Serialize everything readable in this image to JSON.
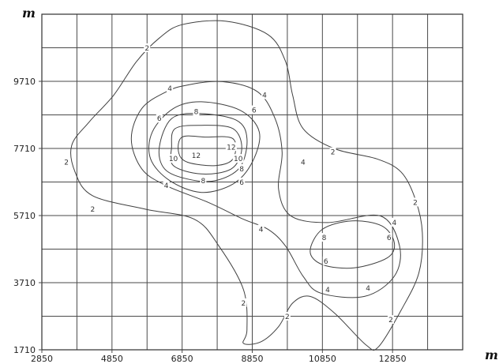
{
  "chart_data": {
    "type": "contour",
    "title": "",
    "xlabel": "m",
    "ylabel": "m",
    "xlim": [
      2850,
      14850
    ],
    "ylim": [
      1710,
      11710
    ],
    "x_ticks": [
      {
        "value": 2850,
        "label": "2850"
      },
      {
        "value": 4850,
        "label": "4850"
      },
      {
        "value": 6850,
        "label": "6850"
      },
      {
        "value": 8850,
        "label": "8850"
      },
      {
        "value": 10850,
        "label": "10850"
      },
      {
        "value": 12850,
        "label": "12850"
      }
    ],
    "y_ticks": [
      {
        "value": 1710,
        "label": "1710"
      },
      {
        "value": 3710,
        "label": "3710"
      },
      {
        "value": 5710,
        "label": "5710"
      },
      {
        "value": 7710,
        "label": "7710"
      },
      {
        "value": 9710,
        "label": "9710"
      }
    ],
    "grid_x": [
      2850,
      3850,
      4850,
      5850,
      6850,
      7850,
      8850,
      9850,
      10850,
      11850,
      12850,
      13850,
      14850
    ],
    "grid_y": [
      1710,
      2710,
      3710,
      4710,
      5710,
      6710,
      7710,
      8710,
      9710,
      10710,
      11710
    ],
    "grid": true,
    "contours": [
      {
        "level": "2",
        "points": [
          [
            6850,
            11400
          ],
          [
            8100,
            11500
          ],
          [
            9300,
            11100
          ],
          [
            9800,
            10300
          ],
          [
            10000,
            9300
          ],
          [
            10300,
            8300
          ],
          [
            11200,
            7700
          ],
          [
            12400,
            7400
          ],
          [
            13100,
            7000
          ],
          [
            13500,
            6200
          ],
          [
            13700,
            5200
          ],
          [
            13600,
            4000
          ],
          [
            13100,
            2900
          ],
          [
            12450,
            1800
          ],
          [
            12100,
            1850
          ],
          [
            11200,
            2800
          ],
          [
            10500,
            3300
          ],
          [
            10000,
            3100
          ],
          [
            9600,
            2400
          ],
          [
            9100,
            1950
          ],
          [
            8600,
            1900
          ],
          [
            8700,
            2300
          ],
          [
            8600,
            3500
          ],
          [
            7900,
            4800
          ],
          [
            7200,
            5600
          ],
          [
            5800,
            5900
          ],
          [
            4300,
            6300
          ],
          [
            3800,
            7000
          ],
          [
            3700,
            7800
          ],
          [
            4200,
            8500
          ],
          [
            4900,
            9300
          ],
          [
            5550,
            10300
          ],
          [
            6200,
            11000
          ],
          [
            6850,
            11400
          ]
        ]
      },
      {
        "level": "4",
        "points": [
          [
            6400,
            9400
          ],
          [
            7000,
            9600
          ],
          [
            8000,
            9700
          ],
          [
            9000,
            9400
          ],
          [
            9500,
            8600
          ],
          [
            9700,
            7600
          ],
          [
            9600,
            6500
          ],
          [
            9950,
            5700
          ],
          [
            11000,
            5500
          ],
          [
            12500,
            5700
          ],
          [
            13050,
            4800
          ],
          [
            12900,
            3900
          ],
          [
            12050,
            3300
          ],
          [
            10800,
            3400
          ],
          [
            10300,
            3900
          ],
          [
            9800,
            4800
          ],
          [
            9300,
            5300
          ],
          [
            8600,
            5600
          ],
          [
            7600,
            6100
          ],
          [
            6400,
            6600
          ],
          [
            5700,
            7100
          ],
          [
            5400,
            8000
          ],
          [
            5700,
            8900
          ],
          [
            6400,
            9400
          ]
        ]
      },
      {
        "level": "6",
        "points": [
          [
            6600,
            8900
          ],
          [
            7400,
            9100
          ],
          [
            8500,
            8850
          ],
          [
            9050,
            8200
          ],
          [
            8850,
            7300
          ],
          [
            8300,
            6650
          ],
          [
            7400,
            6400
          ],
          [
            6500,
            6750
          ],
          [
            5950,
            7400
          ],
          [
            6000,
            8200
          ],
          [
            6600,
            8900
          ]
        ]
      },
      {
        "level": "8",
        "points": [
          [
            6550,
            8600
          ],
          [
            7350,
            8750
          ],
          [
            8400,
            8550
          ],
          [
            8700,
            8000
          ],
          [
            8500,
            7150
          ],
          [
            7800,
            6750
          ],
          [
            7000,
            6800
          ],
          [
            6350,
            7100
          ],
          [
            6200,
            7750
          ],
          [
            6550,
            8600
          ]
        ]
      },
      {
        "level": "10",
        "points": [
          [
            6650,
            8300
          ],
          [
            7400,
            8400
          ],
          [
            8300,
            8300
          ],
          [
            8550,
            7700
          ],
          [
            8250,
            7100
          ],
          [
            7400,
            6950
          ],
          [
            6600,
            7200
          ],
          [
            6550,
            7750
          ],
          [
            6650,
            8300
          ]
        ]
      },
      {
        "level": "12",
        "points": [
          [
            6850,
            8050
          ],
          [
            7500,
            8050
          ],
          [
            8300,
            8000
          ],
          [
            8300,
            7400
          ],
          [
            7800,
            7200
          ],
          [
            7000,
            7300
          ],
          [
            6750,
            7600
          ],
          [
            6850,
            8050
          ]
        ]
      },
      {
        "level": "6",
        "points": [
          [
            10850,
            5300
          ],
          [
            11700,
            5550
          ],
          [
            12550,
            5400
          ],
          [
            12900,
            4900
          ],
          [
            12700,
            4450
          ],
          [
            11750,
            4150
          ],
          [
            10850,
            4250
          ],
          [
            10500,
            4650
          ],
          [
            10850,
            5300
          ]
        ]
      }
    ],
    "contour_labels": [
      {
        "text": "2",
        "x": 5850,
        "y": 10700
      },
      {
        "text": "2",
        "x": 3550,
        "y": 7300
      },
      {
        "text": "2",
        "x": 4300,
        "y": 5900
      },
      {
        "text": "2",
        "x": 9850,
        "y": 2700
      },
      {
        "text": "2",
        "x": 12800,
        "y": 2600
      },
      {
        "text": "2",
        "x": 13500,
        "y": 6100
      },
      {
        "text": "2",
        "x": 11150,
        "y": 7600
      },
      {
        "text": "2",
        "x": 8600,
        "y": 3100
      },
      {
        "text": "4",
        "x": 6500,
        "y": 9500
      },
      {
        "text": "4",
        "x": 9200,
        "y": 9300
      },
      {
        "text": "4",
        "x": 6400,
        "y": 6600
      },
      {
        "text": "4",
        "x": 9100,
        "y": 5300
      },
      {
        "text": "4",
        "x": 10300,
        "y": 7300
      },
      {
        "text": "4",
        "x": 11000,
        "y": 3500
      },
      {
        "text": "4",
        "x": 12150,
        "y": 3550
      },
      {
        "text": "4",
        "x": 12900,
        "y": 5500
      },
      {
        "text": "6",
        "x": 6200,
        "y": 8600
      },
      {
        "text": "6",
        "x": 8900,
        "y": 8850
      },
      {
        "text": "6",
        "x": 8550,
        "y": 6700
      },
      {
        "text": "6",
        "x": 10950,
        "y": 4350
      },
      {
        "text": "6",
        "x": 12750,
        "y": 5050
      },
      {
        "text": "8",
        "x": 7250,
        "y": 8800
      },
      {
        "text": "8",
        "x": 7450,
        "y": 6750
      },
      {
        "text": "8",
        "x": 8550,
        "y": 7100
      },
      {
        "text": "8",
        "x": 10900,
        "y": 5050
      },
      {
        "text": "10",
        "x": 6600,
        "y": 7400
      },
      {
        "text": "10",
        "x": 8450,
        "y": 7400
      },
      {
        "text": "12",
        "x": 7250,
        "y": 7500
      },
      {
        "text": "12",
        "x": 8250,
        "y": 7750
      }
    ]
  }
}
